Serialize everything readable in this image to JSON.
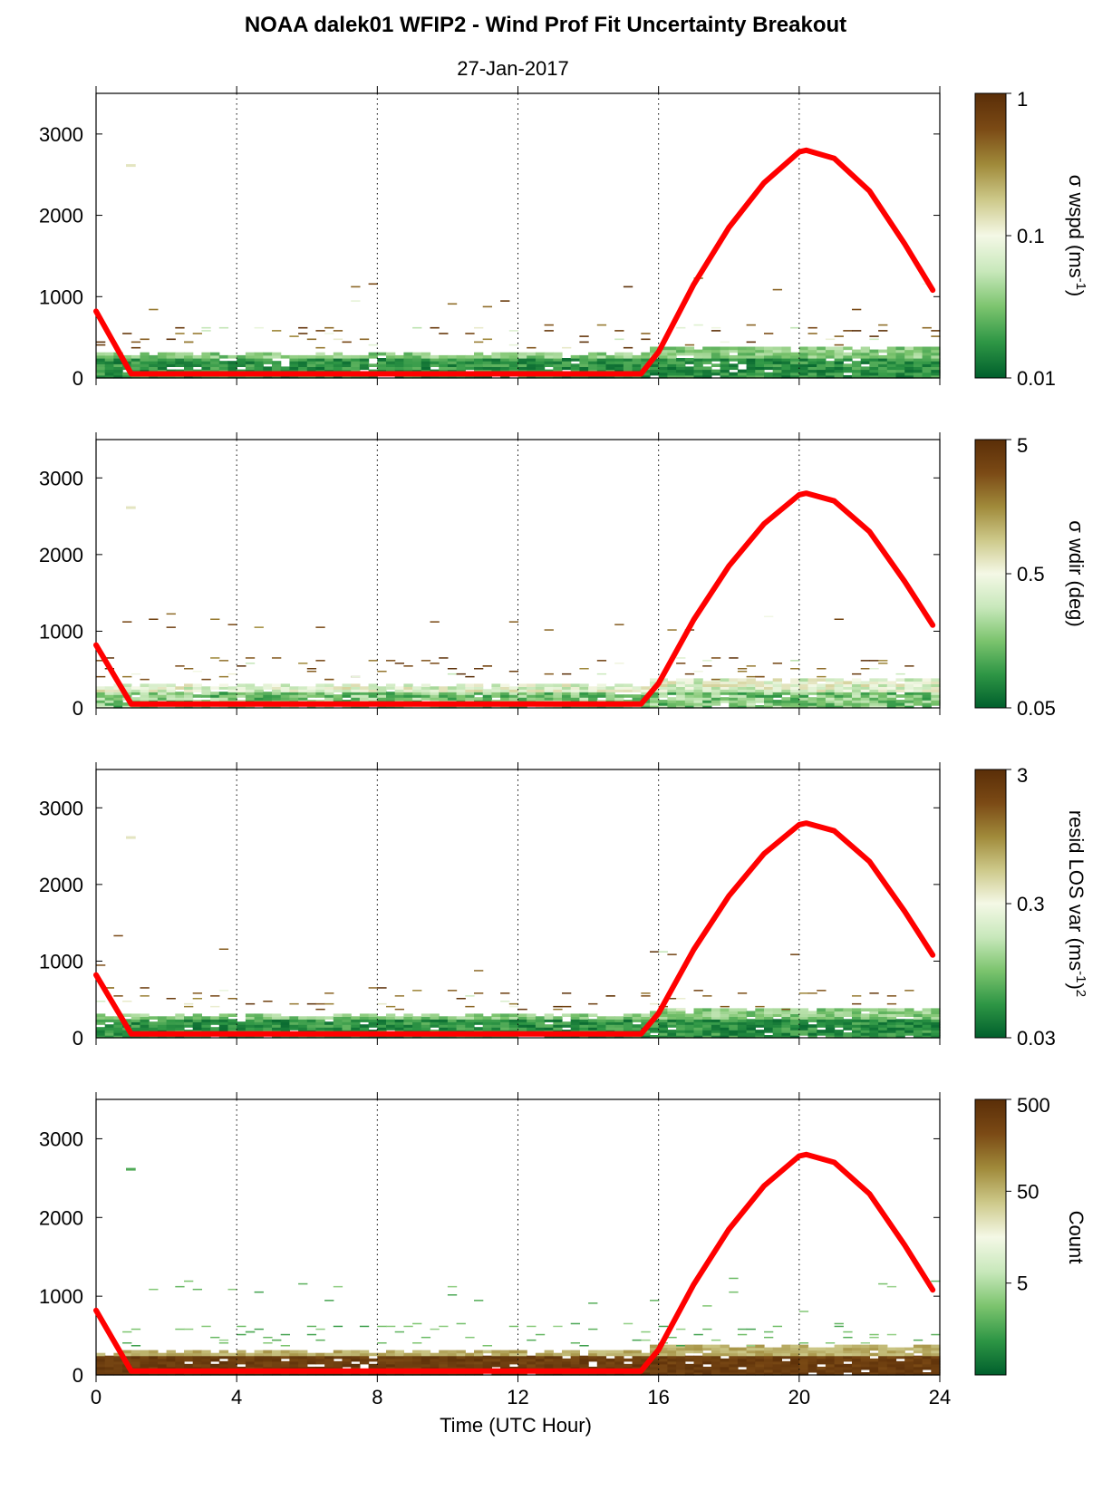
{
  "figure": {
    "title": "NOAA dalek01 WFIP2 - Wind Prof Fit Uncertainty Breakout",
    "subtitle": "27-Jan-2017",
    "xlabel": "Time (UTC Hour)"
  },
  "colors": {
    "sun_curve": "#ff0000",
    "colormap": [
      "#005f2c",
      "#2e9645",
      "#7cc46e",
      "#c8e8bb",
      "#f4f8e6",
      "#cdc98a",
      "#a08a3a",
      "#7b4a15",
      "#5a2e08"
    ],
    "grid": "#000000"
  },
  "chart_data": [
    {
      "type": "heatmap",
      "panel": "sigma-wspd",
      "xlim": [
        0,
        24
      ],
      "ylim": [
        0,
        3500
      ],
      "xticks": [
        "0",
        "4",
        "8",
        "12",
        "16",
        "20",
        "24"
      ],
      "yticks": [
        "0",
        "1000",
        "2000",
        "3000"
      ],
      "colorbar": {
        "label": "σ wspd (ms",
        "label_sup": "-1",
        "label_end": ")",
        "scale": "log",
        "range": [
          0.01,
          1
        ],
        "ticks": [
          "0.01",
          "0.1",
          "1"
        ]
      },
      "grid_x": [
        4,
        8,
        12,
        16,
        20
      ],
      "series": [
        {
          "x": [
            0,
            1,
            2,
            3,
            4,
            6,
            8,
            10,
            12,
            14,
            15.5,
            16,
            17,
            18,
            19,
            20,
            20.2,
            21,
            22,
            23,
            23.8
          ],
          "y": [
            820,
            50,
            50,
            50,
            50,
            50,
            50,
            50,
            50,
            50,
            50,
            320,
            1150,
            1850,
            2400,
            2780,
            2800,
            2700,
            2300,
            1650,
            1080
          ]
        }
      ]
    },
    {
      "type": "heatmap",
      "panel": "sigma-wdir",
      "xlim": [
        0,
        24
      ],
      "ylim": [
        0,
        3500
      ],
      "xticks": [
        "0",
        "4",
        "8",
        "12",
        "16",
        "20",
        "24"
      ],
      "yticks": [
        "0",
        "1000",
        "2000",
        "3000"
      ],
      "colorbar": {
        "label": "σ wdir (deg)",
        "scale": "log",
        "range": [
          0.05,
          5
        ],
        "ticks": [
          "0.05",
          "0.5",
          "5"
        ]
      },
      "grid_x": [
        4,
        8,
        12,
        16,
        20
      ],
      "series": [
        {
          "x": [
            0,
            1,
            2,
            3,
            4,
            6,
            8,
            10,
            12,
            14,
            15.5,
            16,
            17,
            18,
            19,
            20,
            20.2,
            21,
            22,
            23,
            23.8
          ],
          "y": [
            820,
            50,
            50,
            50,
            50,
            50,
            50,
            50,
            50,
            50,
            50,
            320,
            1150,
            1850,
            2400,
            2780,
            2800,
            2700,
            2300,
            1650,
            1080
          ]
        }
      ]
    },
    {
      "type": "heatmap",
      "panel": "resid-los-var",
      "xlim": [
        0,
        24
      ],
      "ylim": [
        0,
        3500
      ],
      "xticks": [
        "0",
        "4",
        "8",
        "12",
        "16",
        "20",
        "24"
      ],
      "yticks": [
        "0",
        "1000",
        "2000",
        "3000"
      ],
      "colorbar": {
        "label": "resid LOS var (ms",
        "label_sup": "-1",
        "label_mid": ")",
        "label_sup2": "2",
        "scale": "log",
        "range": [
          0.03,
          3
        ],
        "ticks": [
          "0.03",
          "0.3",
          "3"
        ]
      },
      "grid_x": [
        4,
        8,
        12,
        16,
        20
      ],
      "series": [
        {
          "x": [
            0,
            1,
            2,
            3,
            4,
            6,
            8,
            10,
            12,
            14,
            15.5,
            16,
            17,
            18,
            19,
            20,
            20.2,
            21,
            22,
            23,
            23.8
          ],
          "y": [
            820,
            50,
            50,
            50,
            50,
            50,
            50,
            50,
            50,
            50,
            50,
            320,
            1150,
            1850,
            2400,
            2780,
            2800,
            2700,
            2300,
            1650,
            1080
          ]
        }
      ]
    },
    {
      "type": "heatmap",
      "panel": "count",
      "xlim": [
        0,
        24
      ],
      "ylim": [
        0,
        3500
      ],
      "xticks": [
        "0",
        "4",
        "8",
        "12",
        "16",
        "20",
        "24"
      ],
      "yticks": [
        "0",
        "1000",
        "2000",
        "3000"
      ],
      "colorbar": {
        "label": "Count",
        "scale": "log",
        "range": [
          0.5,
          500
        ],
        "ticks": [
          "5",
          "50",
          "500"
        ]
      },
      "grid_x": [
        4,
        8,
        12,
        16,
        20
      ],
      "series": [
        {
          "x": [
            0,
            1,
            2,
            3,
            4,
            6,
            8,
            10,
            12,
            14,
            15.5,
            16,
            17,
            18,
            19,
            20,
            20.2,
            21,
            22,
            23,
            23.8
          ],
          "y": [
            820,
            50,
            50,
            50,
            50,
            50,
            50,
            50,
            50,
            50,
            50,
            320,
            1150,
            1850,
            2400,
            2780,
            2800,
            2700,
            2300,
            1650,
            1080
          ]
        }
      ]
    }
  ]
}
